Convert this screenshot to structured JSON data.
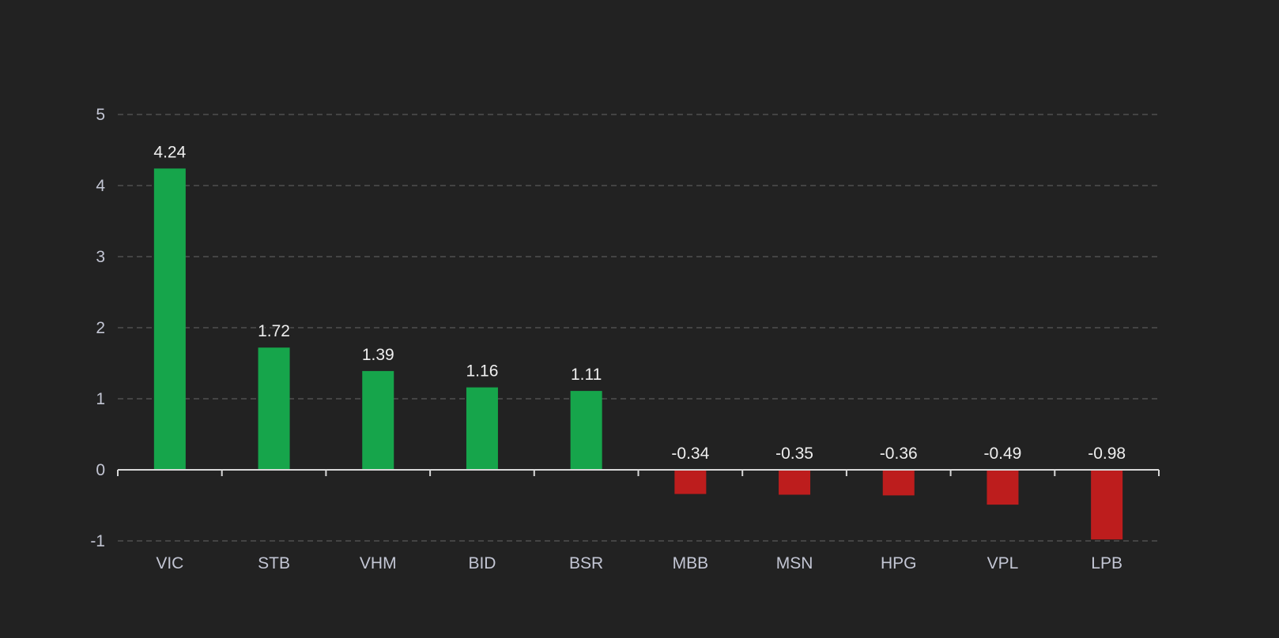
{
  "chart_data": {
    "type": "bar",
    "categories": [
      "VIC",
      "STB",
      "VHM",
      "BID",
      "BSR",
      "MBB",
      "MSN",
      "HPG",
      "VPL",
      "LPB"
    ],
    "values": [
      4.24,
      1.72,
      1.39,
      1.16,
      1.11,
      -0.34,
      -0.35,
      -0.36,
      -0.49,
      -0.98
    ],
    "labels": [
      "4.24",
      "1.72",
      "1.39",
      "1.16",
      "1.11",
      "-0.34",
      "-0.35",
      "-0.36",
      "-0.49",
      "-0.98"
    ],
    "title": "",
    "xlabel": "",
    "ylabel": "",
    "ylim": [
      -1,
      5
    ],
    "yticks": [
      "-1",
      "0",
      "1",
      "2",
      "3",
      "4",
      "5"
    ],
    "grid": true,
    "colors": {
      "positive": "#16a54b",
      "negative": "#bd1d1d",
      "background": "#222222"
    }
  }
}
